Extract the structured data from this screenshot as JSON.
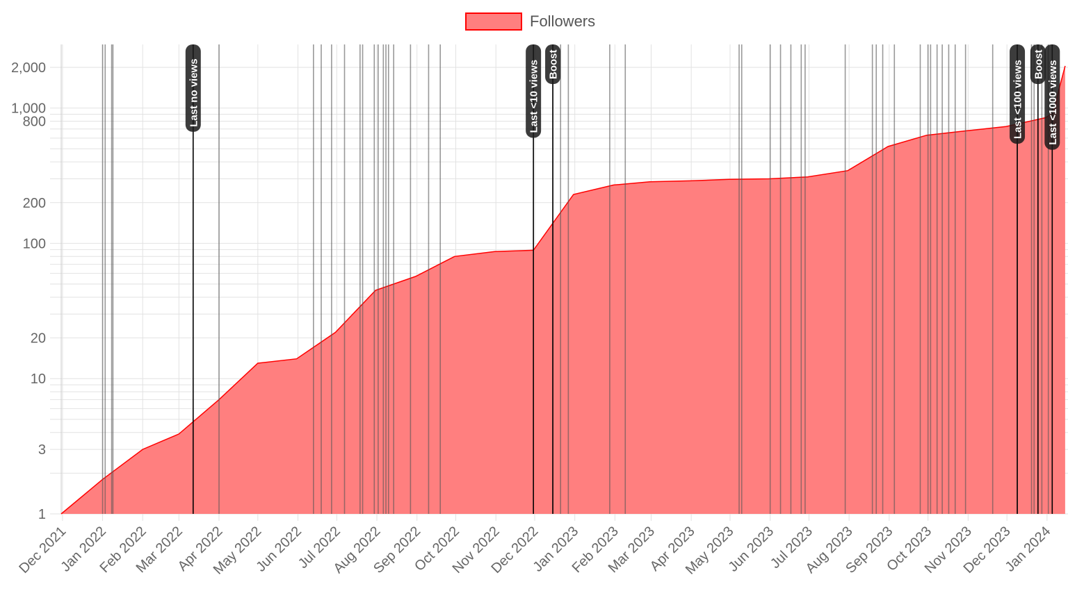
{
  "chart_data": {
    "type": "area",
    "title": "",
    "xlabel": "",
    "ylabel": "",
    "y_scale": "log",
    "ylim": [
      1,
      2800
    ],
    "xlim": [
      "2021-11-30",
      "2024-01-15"
    ],
    "grid": true,
    "legend_position": "top",
    "colors": {
      "fill": "#ff7f7f",
      "line": "#ff0000",
      "event_line": "#555555",
      "annotation_line": "#000000"
    },
    "y_ticks": [
      {
        "value": 1,
        "label": "1"
      },
      {
        "value": 3,
        "label": "3"
      },
      {
        "value": 10,
        "label": "10"
      },
      {
        "value": 20,
        "label": "20"
      },
      {
        "value": 100,
        "label": "100"
      },
      {
        "value": 200,
        "label": "200"
      },
      {
        "value": 800,
        "label": "800"
      },
      {
        "value": 1000,
        "label": "1,000"
      },
      {
        "value": 2000,
        "label": "2,000"
      }
    ],
    "x_ticks": [
      {
        "date": "2021-12-01",
        "label": "Dec 2021"
      },
      {
        "date": "2022-01-01",
        "label": "Jan 2022"
      },
      {
        "date": "2022-02-01",
        "label": "Feb 2022"
      },
      {
        "date": "2022-03-01",
        "label": "Mar 2022"
      },
      {
        "date": "2022-04-01",
        "label": "Apr 2022"
      },
      {
        "date": "2022-05-01",
        "label": "May 2022"
      },
      {
        "date": "2022-06-01",
        "label": "Jun 2022"
      },
      {
        "date": "2022-07-01",
        "label": "Jul 2022"
      },
      {
        "date": "2022-08-01",
        "label": "Aug 2022"
      },
      {
        "date": "2022-09-01",
        "label": "Sep 2022"
      },
      {
        "date": "2022-10-01",
        "label": "Oct 2022"
      },
      {
        "date": "2022-11-01",
        "label": "Nov 2022"
      },
      {
        "date": "2022-12-01",
        "label": "Dec 2022"
      },
      {
        "date": "2023-01-01",
        "label": "Jan 2023"
      },
      {
        "date": "2023-02-01",
        "label": "Feb 2023"
      },
      {
        "date": "2023-03-01",
        "label": "Mar 2023"
      },
      {
        "date": "2023-04-01",
        "label": "Apr 2023"
      },
      {
        "date": "2023-05-01",
        "label": "May 2023"
      },
      {
        "date": "2023-06-01",
        "label": "Jun 2023"
      },
      {
        "date": "2023-07-01",
        "label": "Jul 2023"
      },
      {
        "date": "2023-08-01",
        "label": "Aug 2023"
      },
      {
        "date": "2023-09-01",
        "label": "Sep 2023"
      },
      {
        "date": "2023-10-01",
        "label": "Oct 2023"
      },
      {
        "date": "2023-11-01",
        "label": "Nov 2023"
      },
      {
        "date": "2023-12-01",
        "label": "Dec 2023"
      },
      {
        "date": "2024-01-01",
        "label": "Jan 2024"
      }
    ],
    "series": [
      {
        "name": "Followers",
        "points": [
          {
            "x": "2021-11-30",
            "y": 1
          },
          {
            "x": "2022-01-01",
            "y": 1.8
          },
          {
            "x": "2022-02-01",
            "y": 3
          },
          {
            "x": "2022-03-01",
            "y": 3.9
          },
          {
            "x": "2022-03-12",
            "y": 4.8
          },
          {
            "x": "2022-04-01",
            "y": 7
          },
          {
            "x": "2022-05-01",
            "y": 13
          },
          {
            "x": "2022-05-31",
            "y": 14
          },
          {
            "x": "2022-06-30",
            "y": 22
          },
          {
            "x": "2022-07-31",
            "y": 45
          },
          {
            "x": "2022-08-31",
            "y": 57
          },
          {
            "x": "2022-09-30",
            "y": 80
          },
          {
            "x": "2022-10-31",
            "y": 87
          },
          {
            "x": "2022-11-30",
            "y": 89
          },
          {
            "x": "2022-12-31",
            "y": 230
          },
          {
            "x": "2023-01-31",
            "y": 270
          },
          {
            "x": "2023-02-28",
            "y": 285
          },
          {
            "x": "2023-03-31",
            "y": 290
          },
          {
            "x": "2023-04-30",
            "y": 297
          },
          {
            "x": "2023-05-31",
            "y": 300
          },
          {
            "x": "2023-06-30",
            "y": 310
          },
          {
            "x": "2023-07-31",
            "y": 345
          },
          {
            "x": "2023-08-31",
            "y": 520
          },
          {
            "x": "2023-09-30",
            "y": 630
          },
          {
            "x": "2023-10-31",
            "y": 680
          },
          {
            "x": "2023-11-30",
            "y": 730
          },
          {
            "x": "2023-12-31",
            "y": 850
          },
          {
            "x": "2024-01-04",
            "y": 900
          },
          {
            "x": "2024-01-07",
            "y": 1000
          },
          {
            "x": "2024-01-08",
            "y": 1100
          },
          {
            "x": "2024-01-10",
            "y": 1350
          },
          {
            "x": "2024-01-15",
            "y": 2050
          }
        ]
      }
    ],
    "event_markers": [
      "2022-01-01",
      "2022-01-03",
      "2022-01-08",
      "2022-01-09",
      "2022-04-01",
      "2022-06-13",
      "2022-06-19",
      "2022-06-27",
      "2022-07-07",
      "2022-07-19",
      "2022-07-21",
      "2022-07-30",
      "2022-08-02",
      "2022-08-06",
      "2022-08-08",
      "2022-08-10",
      "2022-08-14",
      "2022-08-27",
      "2022-09-10",
      "2022-09-19",
      "2022-12-15",
      "2022-12-21",
      "2022-12-27",
      "2023-01-28",
      "2023-02-09",
      "2023-05-08",
      "2023-05-10",
      "2023-06-01",
      "2023-06-09",
      "2023-06-17",
      "2023-06-25",
      "2023-06-28",
      "2023-07-29",
      "2023-08-19",
      "2023-08-22",
      "2023-08-27",
      "2023-09-05",
      "2023-09-25",
      "2023-10-01",
      "2023-10-03",
      "2023-10-08",
      "2023-10-12",
      "2023-10-17",
      "2023-10-22",
      "2023-10-30",
      "2023-11-20",
      "2023-12-09",
      "2023-12-20",
      "2023-12-22",
      "2023-12-28",
      "2024-01-02"
    ],
    "annotations": [
      {
        "date": "2022-03-12",
        "label": "Last no views"
      },
      {
        "date": "2022-11-30",
        "label": "Last <10 views"
      },
      {
        "date": "2022-12-15",
        "label": "Boost"
      },
      {
        "date": "2023-12-09",
        "label": "Last <100 views"
      },
      {
        "date": "2023-12-25",
        "label": "Boost"
      },
      {
        "date": "2024-01-05",
        "label": "Last <1000 views"
      }
    ]
  }
}
